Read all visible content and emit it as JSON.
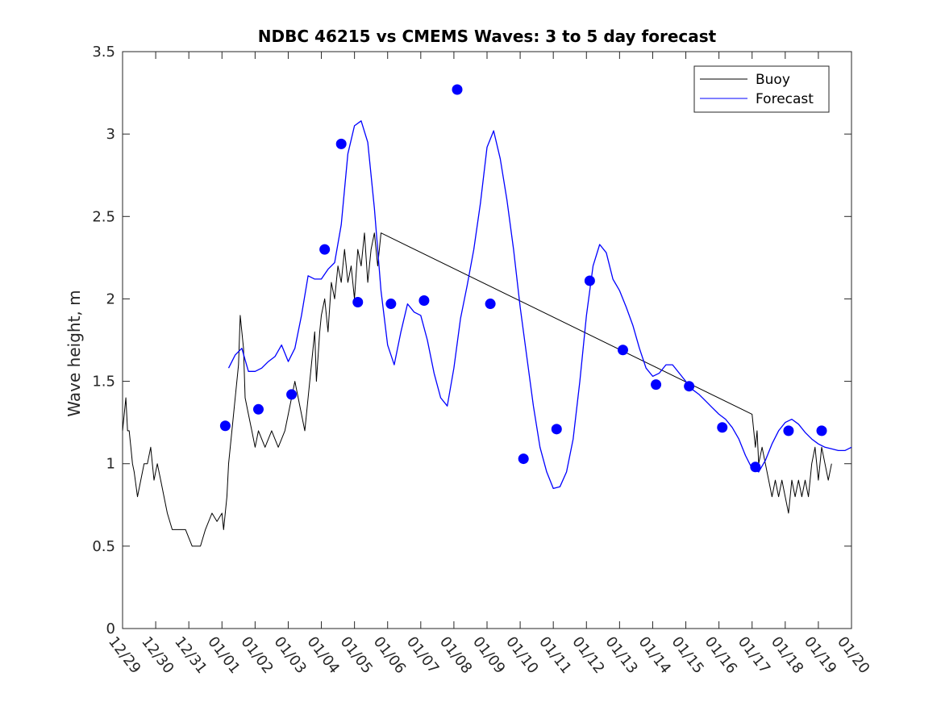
{
  "chart_data": {
    "type": "line",
    "title": "NDBC 46215 vs CMEMS Waves: 3 to 5 day forecast",
    "xlabel": "",
    "ylabel": "Wave height, m",
    "xlim": [
      0,
      22
    ],
    "ylim": [
      0,
      3.5
    ],
    "x_unit": "days since 12/29",
    "x_ticks": [
      0,
      1,
      2,
      3,
      4,
      5,
      6,
      7,
      8,
      9,
      10,
      11,
      12,
      13,
      14,
      15,
      16,
      17,
      18,
      19,
      20,
      21,
      22
    ],
    "x_tick_labels": [
      "12/29",
      "12/30",
      "12/31",
      "01/01",
      "01/02",
      "01/03",
      "01/04",
      "01/05",
      "01/06",
      "01/07",
      "01/08",
      "01/09",
      "01/10",
      "01/11",
      "01/12",
      "01/13",
      "01/14",
      "01/15",
      "01/16",
      "01/17",
      "01/18",
      "01/19",
      "01/20"
    ],
    "y_ticks": [
      0,
      0.5,
      1,
      1.5,
      2,
      2.5,
      3,
      3.5
    ],
    "y_tick_labels": [
      "0",
      "0.5",
      "1",
      "1.5",
      "2",
      "2.5",
      "3",
      "3.5"
    ],
    "grid": false,
    "legend": {
      "location": "top-right",
      "entries": [
        {
          "label": "Buoy",
          "color": "#000000"
        },
        {
          "label": "Forecast",
          "color": "#0000ff"
        }
      ]
    },
    "colors": {
      "buoy": "#000000",
      "forecast": "#0000ff",
      "axis": "#262626"
    },
    "series": [
      {
        "name": "Buoy",
        "x": [
          0,
          0.1,
          0.15,
          0.2,
          0.25,
          0.3,
          0.35,
          0.45,
          0.55,
          0.65,
          0.75,
          0.85,
          0.95,
          1.05,
          1.15,
          1.25,
          1.35,
          1.5,
          1.7,
          1.9,
          2.1,
          2.35,
          2.5,
          2.7,
          2.85,
          3.0,
          3.05,
          3.15,
          3.2,
          3.3,
          3.4,
          3.5,
          3.55,
          3.65,
          3.7,
          3.8,
          3.9,
          4.0,
          4.1,
          4.3,
          4.5,
          4.7,
          4.9,
          5.0,
          5.2,
          5.4,
          5.5,
          5.6,
          5.7,
          5.8,
          5.85,
          5.95,
          6.0,
          6.1,
          6.2,
          6.3,
          6.4,
          6.5,
          6.6,
          6.7,
          6.8,
          6.9,
          7.0,
          7.1,
          7.2,
          7.3,
          7.4,
          7.5,
          7.6,
          7.7,
          7.8,
          19.0,
          19.05,
          19.1,
          19.15,
          19.2,
          19.3,
          19.4,
          19.5,
          19.6,
          19.7,
          19.8,
          19.9,
          20.0,
          20.1,
          20.2,
          20.3,
          20.4,
          20.5,
          20.6,
          20.7,
          20.8,
          20.9,
          21.0,
          21.1,
          21.2,
          21.3,
          21.4
        ],
        "y": [
          1.2,
          1.4,
          1.2,
          1.2,
          1.1,
          1.0,
          0.95,
          0.8,
          0.9,
          1.0,
          1.0,
          1.1,
          0.9,
          1.0,
          0.9,
          0.8,
          0.7,
          0.6,
          0.6,
          0.6,
          0.5,
          0.5,
          0.6,
          0.7,
          0.65,
          0.7,
          0.6,
          0.8,
          1.0,
          1.2,
          1.4,
          1.6,
          1.9,
          1.7,
          1.4,
          1.3,
          1.2,
          1.1,
          1.2,
          1.1,
          1.2,
          1.1,
          1.2,
          1.3,
          1.5,
          1.3,
          1.2,
          1.4,
          1.6,
          1.8,
          1.5,
          1.8,
          1.9,
          2.0,
          1.8,
          2.1,
          2.0,
          2.2,
          2.1,
          2.3,
          2.1,
          2.2,
          2.0,
          2.3,
          2.2,
          2.4,
          2.1,
          2.3,
          2.4,
          2.2,
          2.4,
          1.3,
          1.2,
          1.1,
          1.2,
          1.0,
          1.1,
          1.0,
          0.9,
          0.8,
          0.9,
          0.8,
          0.9,
          0.8,
          0.7,
          0.9,
          0.8,
          0.9,
          0.8,
          0.9,
          0.8,
          1.0,
          1.1,
          0.9,
          1.1,
          1.0,
          0.9,
          1.0
        ]
      },
      {
        "name": "Forecast",
        "x": [
          3.2,
          3.4,
          3.6,
          3.8,
          4.0,
          4.2,
          4.4,
          4.6,
          4.8,
          5.0,
          5.2,
          5.4,
          5.6,
          5.8,
          6.0,
          6.2,
          6.4,
          6.6,
          6.8,
          7.0,
          7.2,
          7.4,
          7.6,
          7.8,
          8.0,
          8.2,
          8.4,
          8.6,
          8.8,
          9.0,
          9.2,
          9.4,
          9.6,
          9.8,
          10.0,
          10.2,
          10.4,
          10.6,
          10.8,
          11.0,
          11.2,
          11.4,
          11.6,
          11.8,
          12.0,
          12.2,
          12.4,
          12.6,
          12.8,
          13.0,
          13.2,
          13.4,
          13.6,
          13.8,
          14.0,
          14.2,
          14.4,
          14.6,
          14.8,
          15.0,
          15.2,
          15.4,
          15.6,
          15.8,
          16.0,
          16.2,
          16.4,
          16.6,
          16.8,
          17.0,
          17.2,
          17.4,
          17.6,
          17.8,
          18.0,
          18.2,
          18.4,
          18.6,
          18.8,
          19.0,
          19.2,
          19.4,
          19.6,
          19.8,
          20.0,
          20.2,
          20.4,
          20.6,
          20.8,
          21.0,
          21.2,
          21.4,
          21.6,
          21.8,
          22.0
        ],
        "y": [
          1.58,
          1.66,
          1.7,
          1.56,
          1.56,
          1.58,
          1.62,
          1.65,
          1.72,
          1.62,
          1.7,
          1.9,
          2.14,
          2.12,
          2.12,
          2.18,
          2.22,
          2.45,
          2.88,
          3.05,
          3.08,
          2.95,
          2.55,
          2.05,
          1.72,
          1.6,
          1.8,
          1.97,
          1.92,
          1.9,
          1.75,
          1.55,
          1.4,
          1.35,
          1.58,
          1.88,
          2.08,
          2.3,
          2.58,
          2.92,
          3.02,
          2.85,
          2.6,
          2.3,
          1.95,
          1.65,
          1.35,
          1.1,
          0.95,
          0.85,
          0.86,
          0.95,
          1.15,
          1.5,
          1.9,
          2.2,
          2.33,
          2.28,
          2.12,
          2.05,
          1.95,
          1.84,
          1.7,
          1.58,
          1.53,
          1.55,
          1.6,
          1.6,
          1.55,
          1.5,
          1.45,
          1.42,
          1.38,
          1.34,
          1.3,
          1.27,
          1.22,
          1.15,
          1.05,
          0.97,
          0.95,
          1.02,
          1.12,
          1.2,
          1.25,
          1.27,
          1.24,
          1.19,
          1.15,
          1.12,
          1.1,
          1.09,
          1.08,
          1.08,
          1.1
        ]
      }
    ],
    "markers": {
      "name": "Forecast points",
      "x": [
        3.1,
        4.1,
        5.1,
        6.1,
        6.6,
        7.1,
        8.1,
        9.1,
        10.1,
        11.1,
        12.1,
        13.1,
        14.1,
        15.1,
        16.1,
        17.1,
        18.1,
        19.1,
        20.1,
        21.1
      ],
      "y": [
        1.23,
        1.33,
        1.42,
        2.3,
        2.94,
        1.98,
        1.97,
        1.99,
        3.27,
        1.97,
        1.03,
        1.21,
        2.11,
        1.69,
        1.48,
        1.47,
        1.22,
        0.98,
        1.2,
        1.2
      ]
    }
  }
}
